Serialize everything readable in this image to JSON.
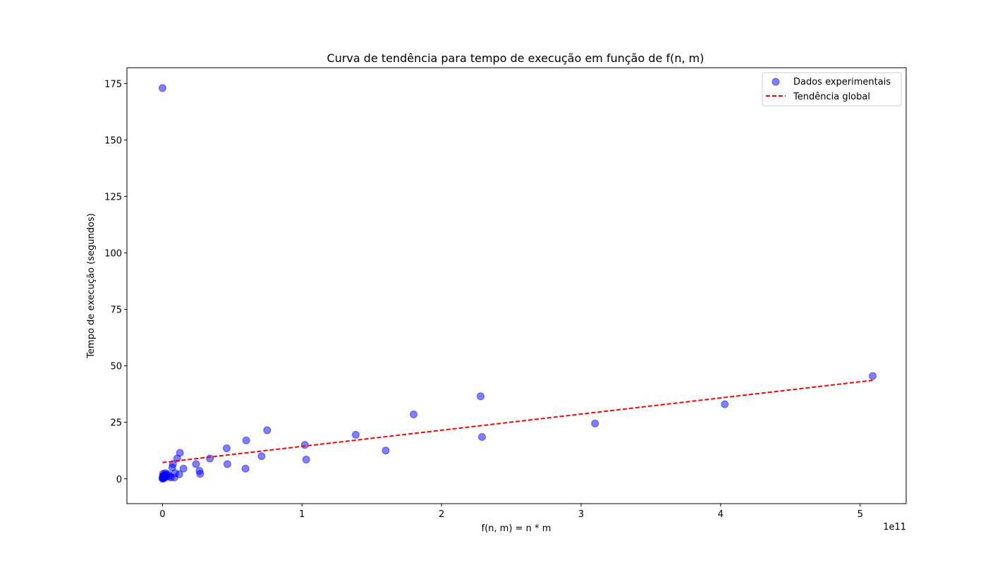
{
  "chart_data": {
    "type": "scatter",
    "title": "Curva de tendência para tempo de execução em função de f(n, m)",
    "xlabel": "f(n, m) = n * m",
    "ylabel": "Tempo de execução (segundos)",
    "x_offset_text": "1e11",
    "x_scale": 100000000000.0,
    "xlim": [
      -0.255,
      5.33
    ],
    "ylim": [
      -11,
      182
    ],
    "x_ticks": [
      0,
      1,
      2,
      3,
      4,
      5
    ],
    "x_tick_labels": [
      "0",
      "1",
      "2",
      "3",
      "4",
      "5"
    ],
    "y_ticks": [
      0,
      25,
      50,
      75,
      100,
      125,
      150,
      175
    ],
    "y_tick_labels": [
      "0",
      "25",
      "50",
      "75",
      "100",
      "125",
      "150",
      "175"
    ],
    "grid": false,
    "legend_position": "top-right",
    "series": [
      {
        "name": "Dados experimentais",
        "kind": "scatter",
        "color": "#0000ff",
        "alpha": 0.5,
        "points": [
          [
            0.0,
            173.0
          ],
          [
            0.0,
            0.0
          ],
          [
            0.001,
            0.3
          ],
          [
            0.002,
            0.8
          ],
          [
            0.003,
            1.3
          ],
          [
            0.004,
            2.2
          ],
          [
            0.006,
            0.5
          ],
          [
            0.008,
            1.0
          ],
          [
            0.01,
            0.2
          ],
          [
            0.012,
            1.5
          ],
          [
            0.015,
            0.7
          ],
          [
            0.02,
            2.5
          ],
          [
            0.025,
            1.8
          ],
          [
            0.03,
            0.9
          ],
          [
            0.04,
            2.0
          ],
          [
            0.05,
            1.2
          ],
          [
            0.06,
            0.6
          ],
          [
            0.07,
            5.0
          ],
          [
            0.075,
            6.5
          ],
          [
            0.085,
            0.6
          ],
          [
            0.09,
            2.5
          ],
          [
            0.105,
            9.0
          ],
          [
            0.12,
            2.0
          ],
          [
            0.125,
            11.5
          ],
          [
            0.15,
            4.5
          ],
          [
            0.24,
            6.5
          ],
          [
            0.265,
            3.5
          ],
          [
            0.27,
            2.2
          ],
          [
            0.34,
            9.0
          ],
          [
            0.46,
            13.5
          ],
          [
            0.465,
            6.5
          ],
          [
            0.595,
            4.5
          ],
          [
            0.6,
            17.0
          ],
          [
            0.71,
            10.0
          ],
          [
            0.75,
            21.5
          ],
          [
            1.02,
            15.0
          ],
          [
            1.03,
            8.5
          ],
          [
            1.385,
            19.5
          ],
          [
            1.6,
            12.5
          ],
          [
            1.8,
            28.5
          ],
          [
            2.28,
            36.5
          ],
          [
            2.29,
            18.5
          ],
          [
            3.1,
            24.5
          ],
          [
            4.03,
            33.0
          ],
          [
            5.09,
            45.5
          ]
        ]
      },
      {
        "name": "Tendência global",
        "kind": "line",
        "style": "dashed",
        "color": "#ff0000",
        "points": [
          [
            0.0,
            7.2
          ],
          [
            5.09,
            43.6
          ]
        ]
      }
    ]
  }
}
